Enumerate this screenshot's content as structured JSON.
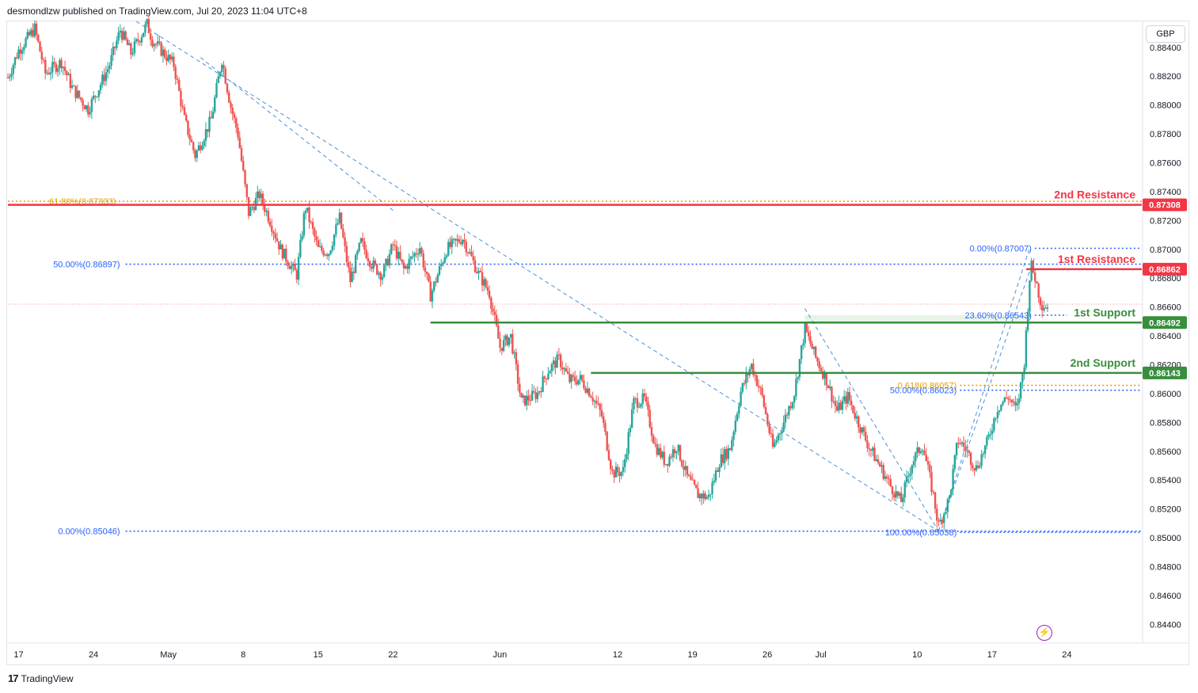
{
  "header": {
    "published_text": "desmondlzw published on TradingView.com, Jul 20, 2023 11:04 UTC+8"
  },
  "footer": {
    "brand_mark": "17",
    "brand_name": "TradingView"
  },
  "currency_label": "GBP",
  "flash_icon": "lightning-icon",
  "colors": {
    "up": "#26a69a",
    "down": "#ef5350",
    "resistance": "#f23645",
    "support": "#388e3c",
    "fib_blue": "#2962ff",
    "fib_orange": "#e0a000",
    "trend_dash": "#4a90d9",
    "grid": "#f0f3fa"
  },
  "chart_data": {
    "type": "candlestick",
    "ylim": [
      0.8427,
      0.8858
    ],
    "y_ticks": [
      "0.88400",
      "0.88200",
      "0.88000",
      "0.87800",
      "0.87600",
      "0.87400",
      "0.87200",
      "0.87000",
      "0.86800",
      "0.86600",
      "0.86400",
      "0.86200",
      "0.86000",
      "0.85800",
      "0.85600",
      "0.85400",
      "0.85200",
      "0.85000",
      "0.84800",
      "0.84600",
      "0.84400"
    ],
    "x_ticks": [
      {
        "label": "17",
        "day": -14
      },
      {
        "label": "24",
        "day": -7
      },
      {
        "label": "May",
        "day": 0
      },
      {
        "label": "8",
        "day": 7
      },
      {
        "label": "15",
        "day": 14
      },
      {
        "label": "22",
        "day": 21
      },
      {
        "label": "Jun",
        "day": 31
      },
      {
        "label": "12",
        "day": 42
      },
      {
        "label": "19",
        "day": 49
      },
      {
        "label": "26",
        "day": 56
      },
      {
        "label": "Jul",
        "day": 61
      },
      {
        "label": "10",
        "day": 70
      },
      {
        "label": "17",
        "day": 77
      },
      {
        "label": "24",
        "day": 84
      }
    ],
    "x_domain_days": [
      -15,
      91
    ],
    "levels": [
      {
        "label": "2nd Resistance",
        "value": "0.87308",
        "price": 0.87308,
        "kind": "resistance",
        "start_day": -15
      },
      {
        "label": "1st Resistance",
        "value": "0.86862",
        "price": 0.86862,
        "kind": "resistance",
        "start_day": 80.2
      },
      {
        "label": "1st Support",
        "value": "0.86492",
        "price": 0.86492,
        "kind": "support",
        "start_day": 24.5
      },
      {
        "label": "2nd Support",
        "value": "0.86143",
        "price": 0.86143,
        "kind": "support",
        "start_day": 39.5
      }
    ],
    "fib_labels": [
      {
        "text": "61.80%(0.87333)",
        "price": 0.87333,
        "color": "orange",
        "side": "left",
        "start_day": -15,
        "end_day": 91
      },
      {
        "text": "50.00%(0.86897)",
        "price": 0.86897,
        "color": "blue",
        "side": "left",
        "start_day": -4,
        "end_day": 91
      },
      {
        "text": "0.00%(0.85046)",
        "price": 0.85046,
        "color": "blue",
        "side": "left",
        "start_day": -4,
        "end_day": 91
      },
      {
        "text": "0.00%(0.87007)",
        "price": 0.87007,
        "color": "blue",
        "side": "right",
        "start_day": 81,
        "end_day": 91
      },
      {
        "text": "23.60%(0.86543)",
        "price": 0.86543,
        "color": "blue",
        "side": "right",
        "start_day": 81,
        "end_day": 84
      },
      {
        "text": "0.618(0.86057)",
        "price": 0.86057,
        "color": "orange",
        "side": "right",
        "start_day": 74,
        "end_day": 91
      },
      {
        "text": "50.00%(0.86023)",
        "price": 0.86023,
        "color": "blue",
        "side": "right",
        "start_day": 74,
        "end_day": 91
      },
      {
        "text": "100.00%(0.85038)",
        "price": 0.85038,
        "color": "blue",
        "side": "right",
        "start_day": 74,
        "end_day": 91
      }
    ],
    "trend_lines": [
      {
        "from": [
          -3,
          0.8858
        ],
        "to": [
          72,
          0.85046
        ]
      },
      {
        "from": [
          3,
          0.8833
        ],
        "to": [
          21,
          0.8727
        ]
      },
      {
        "from": [
          59.5,
          0.8659
        ],
        "to": [
          72,
          0.85046
        ]
      },
      {
        "from": [
          72,
          0.85046
        ],
        "to": [
          80.5,
          0.87007
        ]
      },
      {
        "from": [
          72,
          0.85046
        ],
        "to": [
          81,
          0.8695
        ]
      }
    ],
    "highlight_zone": {
      "from_day": 59.5,
      "to_day": 80.5,
      "top": 0.86543,
      "bottom": 0.86492
    },
    "current_price": 0.8662,
    "anchors": [
      [
        -15.0,
        0.8819
      ],
      [
        -14.0,
        0.8838
      ],
      [
        -12.5,
        0.8853
      ],
      [
        -11.5,
        0.8822
      ],
      [
        -10.0,
        0.883
      ],
      [
        -9.0,
        0.8812
      ],
      [
        -7.5,
        0.8797
      ],
      [
        -6.5,
        0.8812
      ],
      [
        -5.5,
        0.8828
      ],
      [
        -4.5,
        0.8852
      ],
      [
        -3.5,
        0.8836
      ],
      [
        -2.0,
        0.8856
      ],
      [
        -1.5,
        0.8845
      ],
      [
        0.5,
        0.8828
      ],
      [
        1.5,
        0.879
      ],
      [
        2.5,
        0.8765
      ],
      [
        4.0,
        0.879
      ],
      [
        5.0,
        0.8832
      ],
      [
        5.8,
        0.88
      ],
      [
        6.5,
        0.878
      ],
      [
        7.5,
        0.8725
      ],
      [
        8.5,
        0.8738
      ],
      [
        9.5,
        0.872
      ],
      [
        10.5,
        0.87
      ],
      [
        12.0,
        0.8682
      ],
      [
        12.8,
        0.873
      ],
      [
        14.0,
        0.87
      ],
      [
        15.0,
        0.8698
      ],
      [
        16.0,
        0.8722
      ],
      [
        17.0,
        0.8678
      ],
      [
        18.0,
        0.8705
      ],
      [
        19.0,
        0.869
      ],
      [
        20.0,
        0.8682
      ],
      [
        21.0,
        0.8703
      ],
      [
        22.0,
        0.8686
      ],
      [
        23.5,
        0.8702
      ],
      [
        24.5,
        0.8668
      ],
      [
        26.0,
        0.87
      ],
      [
        27.5,
        0.8708
      ],
      [
        29.0,
        0.8683
      ],
      [
        30.0,
        0.867
      ],
      [
        31.0,
        0.8632
      ],
      [
        32.0,
        0.864
      ],
      [
        33.0,
        0.8594
      ],
      [
        34.5,
        0.86
      ],
      [
        35.5,
        0.8616
      ],
      [
        36.5,
        0.8624
      ],
      [
        37.5,
        0.8609
      ],
      [
        38.5,
        0.861
      ],
      [
        39.5,
        0.86
      ],
      [
        40.5,
        0.8585
      ],
      [
        41.5,
        0.8545
      ],
      [
        42.5,
        0.8546
      ],
      [
        43.5,
        0.8594
      ],
      [
        44.5,
        0.8596
      ],
      [
        45.5,
        0.8564
      ],
      [
        46.5,
        0.8552
      ],
      [
        47.5,
        0.8564
      ],
      [
        48.5,
        0.8542
      ],
      [
        49.5,
        0.853
      ],
      [
        50.5,
        0.8528
      ],
      [
        51.5,
        0.8553
      ],
      [
        52.5,
        0.8562
      ],
      [
        53.5,
        0.8601
      ],
      [
        54.5,
        0.862
      ],
      [
        55.5,
        0.8598
      ],
      [
        56.5,
        0.8562
      ],
      [
        57.5,
        0.858
      ],
      [
        58.5,
        0.86
      ],
      [
        59.5,
        0.8645
      ],
      [
        60.5,
        0.8625
      ],
      [
        61.5,
        0.861
      ],
      [
        62.5,
        0.8588
      ],
      [
        63.5,
        0.8598
      ],
      [
        64.5,
        0.858
      ],
      [
        65.5,
        0.8563
      ],
      [
        66.5,
        0.855
      ],
      [
        67.5,
        0.8536
      ],
      [
        68.5,
        0.8525
      ],
      [
        69.5,
        0.8552
      ],
      [
        70.5,
        0.8565
      ],
      [
        71.5,
        0.853
      ],
      [
        72.0,
        0.8508
      ],
      [
        73.0,
        0.8527
      ],
      [
        73.8,
        0.8568
      ],
      [
        74.5,
        0.8562
      ],
      [
        75.5,
        0.8548
      ],
      [
        76.5,
        0.8565
      ],
      [
        77.5,
        0.859
      ],
      [
        78.5,
        0.8598
      ],
      [
        79.3,
        0.8588
      ],
      [
        80.0,
        0.862
      ],
      [
        80.6,
        0.869
      ],
      [
        81.0,
        0.8681
      ],
      [
        81.6,
        0.8662
      ],
      [
        82.3,
        0.866
      ]
    ]
  }
}
